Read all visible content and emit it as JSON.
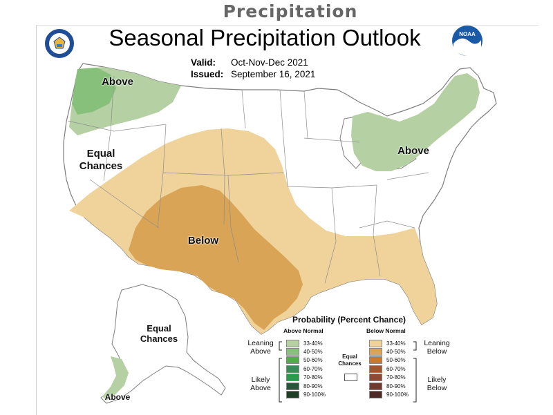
{
  "page": {
    "heading": "Precipitation",
    "title": "Seasonal Precipitation Outlook",
    "valid_label": "Valid:",
    "valid_value": "Oct-Nov-Dec 2021",
    "issued_label": "Issued:",
    "issued_value": "September 16, 2021"
  },
  "logos": {
    "left": "department-of-commerce-seal",
    "right": "noaa-logo",
    "right_text": "NOAA"
  },
  "map": {
    "labels": {
      "above_northwest": "Above",
      "equal_west": "Equal Chances",
      "below_southwest": "Below",
      "above_northeast": "Above",
      "equal_alaska": "Equal Chances",
      "above_alaska": "Above"
    },
    "colors": {
      "above_33_40": "#b5d1a4",
      "above_40_50": "#87c07a",
      "below_33_40": "#f0d39b",
      "below_40_50": "#d9a455",
      "equal": "#ffffff",
      "border": "#7d7d7d"
    }
  },
  "legend": {
    "title": "Probability (Percent Chance)",
    "above_heading": "Above Normal",
    "below_heading": "Below Normal",
    "equal_label": "Equal Chances",
    "leaning_above": "Leaning Above",
    "likely_above": "Likely Above",
    "leaning_below": "Leaning Below",
    "likely_below": "Likely Below",
    "above_bins": [
      {
        "range": "33-40%",
        "color": "#b5d1a4"
      },
      {
        "range": "40-50%",
        "color": "#87c07a"
      },
      {
        "range": "50-60%",
        "color": "#4fae48"
      },
      {
        "range": "60-70%",
        "color": "#3c8a57"
      },
      {
        "range": "70-80%",
        "color": "#279c4a"
      },
      {
        "range": "80-90%",
        "color": "#25583a"
      },
      {
        "range": "90-100%",
        "color": "#1e3f26"
      }
    ],
    "below_bins": [
      {
        "range": "33-40%",
        "color": "#f0d39b"
      },
      {
        "range": "40-50%",
        "color": "#d9a455"
      },
      {
        "range": "50-60%",
        "color": "#c47a37"
      },
      {
        "range": "60-70%",
        "color": "#a5552b"
      },
      {
        "range": "70-80%",
        "color": "#8d4a34"
      },
      {
        "range": "80-90%",
        "color": "#703a2e"
      },
      {
        "range": "90-100%",
        "color": "#4e2a24"
      }
    ]
  }
}
